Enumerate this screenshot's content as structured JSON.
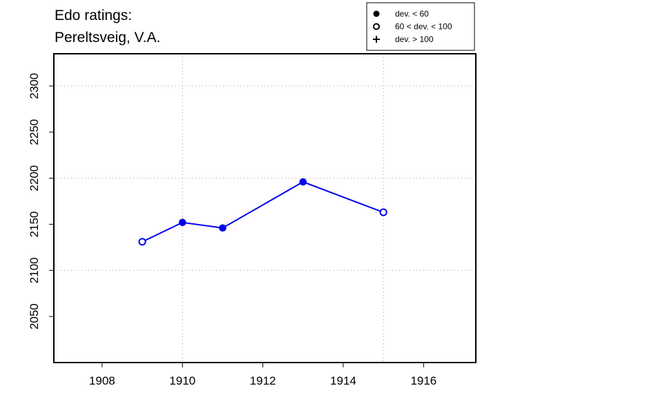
{
  "chart_data": {
    "type": "line",
    "title_lines": [
      "Edo ratings:",
      "Pereltsveig, V.A."
    ],
    "xlabel": "",
    "ylabel": "",
    "xlim": [
      1906.8,
      1917.3
    ],
    "ylim": [
      2000,
      2335
    ],
    "x_ticks": [
      1908,
      1910,
      1912,
      1914,
      1916
    ],
    "y_ticks": [
      2050,
      2100,
      2150,
      2200,
      2250,
      2300
    ],
    "x_grid": [
      1910,
      1915
    ],
    "y_grid": [
      2100,
      2200,
      2300
    ],
    "grid": true,
    "series": [
      {
        "color": "#0000ee",
        "points": [
          {
            "x": 1909,
            "y": 2131,
            "marker": "open-circle"
          },
          {
            "x": 1910,
            "y": 2152,
            "marker": "filled-circle"
          },
          {
            "x": 1911,
            "y": 2146,
            "marker": "filled-circle"
          },
          {
            "x": 1913,
            "y": 2196,
            "marker": "filled-circle"
          },
          {
            "x": 1915,
            "y": 2163,
            "marker": "open-circle"
          }
        ]
      }
    ],
    "legend": {
      "position": "top-right",
      "entries": [
        {
          "marker": "filled-circle",
          "label": "dev. < 60"
        },
        {
          "marker": "open-circle",
          "label": "60 < dev. < 100"
        },
        {
          "marker": "plus",
          "label": "dev. > 100"
        }
      ]
    }
  }
}
